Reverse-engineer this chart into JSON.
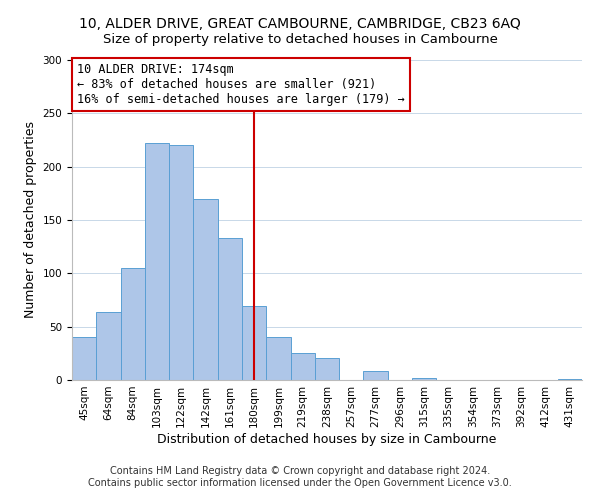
{
  "title": "10, ALDER DRIVE, GREAT CAMBOURNE, CAMBRIDGE, CB23 6AQ",
  "subtitle": "Size of property relative to detached houses in Cambourne",
  "xlabel": "Distribution of detached houses by size in Cambourne",
  "ylabel": "Number of detached properties",
  "bar_labels": [
    "45sqm",
    "64sqm",
    "84sqm",
    "103sqm",
    "122sqm",
    "142sqm",
    "161sqm",
    "180sqm",
    "199sqm",
    "219sqm",
    "238sqm",
    "257sqm",
    "277sqm",
    "296sqm",
    "315sqm",
    "335sqm",
    "354sqm",
    "373sqm",
    "392sqm",
    "412sqm",
    "431sqm"
  ],
  "bar_values": [
    40,
    64,
    105,
    222,
    220,
    170,
    133,
    69,
    40,
    25,
    21,
    0,
    8,
    0,
    2,
    0,
    0,
    0,
    0,
    0,
    1
  ],
  "bar_color": "#aec6e8",
  "bar_edge_color": "#5a9fd4",
  "vline_x": 7,
  "vline_color": "#cc0000",
  "annotation_title": "10 ALDER DRIVE: 174sqm",
  "annotation_line1": "← 83% of detached houses are smaller (921)",
  "annotation_line2": "16% of semi-detached houses are larger (179) →",
  "annotation_box_color": "#ffffff",
  "annotation_box_edge": "#cc0000",
  "footnote1": "Contains HM Land Registry data © Crown copyright and database right 2024.",
  "footnote2": "Contains public sector information licensed under the Open Government Licence v3.0.",
  "ylim": [
    0,
    300
  ],
  "yticks": [
    0,
    50,
    100,
    150,
    200,
    250,
    300
  ],
  "title_fontsize": 10,
  "subtitle_fontsize": 9.5,
  "axis_label_fontsize": 9,
  "tick_fontsize": 7.5,
  "footnote_fontsize": 7
}
